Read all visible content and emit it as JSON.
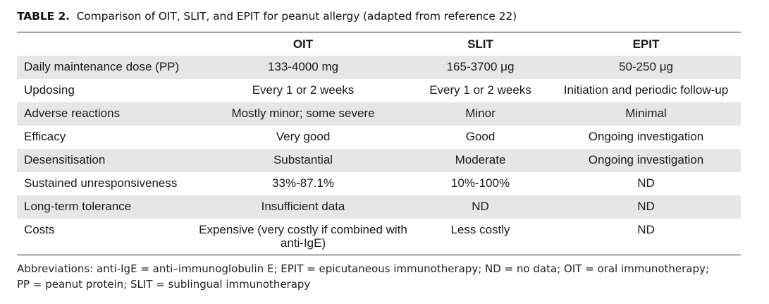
{
  "caption": {
    "label": "TABLE 2.",
    "text": "Comparison of OIT, SLIT, and EPIT for peanut allergy (adapted from reference 22)"
  },
  "table": {
    "headers": [
      "",
      "OIT",
      "SLIT",
      "EPIT"
    ],
    "rows": [
      [
        "Daily maintenance dose (PP)",
        "133-4000 mg",
        "165-3700 μg",
        "50-250 μg"
      ],
      [
        "Updosing",
        "Every 1 or 2 weeks",
        "Every 1 or 2 weeks",
        "Initiation and periodic follow-up"
      ],
      [
        "Adverse reactions",
        "Mostly minor; some severe",
        "Minor",
        "Minimal"
      ],
      [
        "Efficacy",
        "Very good",
        "Good",
        "Ongoing investigation"
      ],
      [
        "Desensitisation",
        "Substantial",
        "Moderate",
        "Ongoing investigation"
      ],
      [
        "Sustained unresponsiveness",
        "33%-87.1%",
        "10%-100%",
        "ND"
      ],
      [
        "Long-term tolerance",
        "Insufficient data",
        "ND",
        "ND"
      ],
      [
        "Costs",
        "Expensive (very costly if combined with anti-IgE)",
        "Less costly",
        "ND"
      ]
    ]
  },
  "footnote": {
    "line1": "Abbreviations: anti-IgE = anti–immunoglobulin E; EPIT = epicutaneous immunotherapy; ND = no data; OIT = oral immunotherapy;",
    "line2": "PP = peanut protein; SLIT = sublingual immunotherapy"
  },
  "colors": {
    "shade": "#e6e6e6",
    "rule": "#222222",
    "text": "#1a1a1a"
  }
}
